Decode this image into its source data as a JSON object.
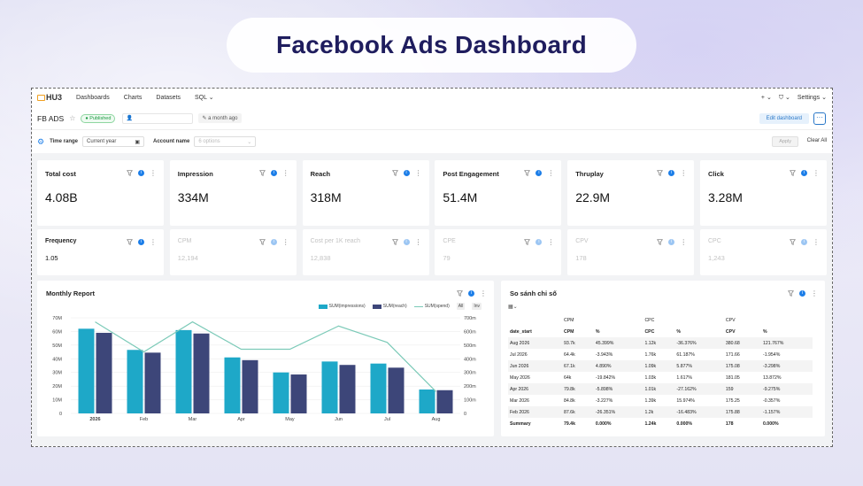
{
  "hero_title": "Facebook Ads Dashboard",
  "nav": {
    "logo": "HU3",
    "items": [
      "Dashboards",
      "Charts",
      "Datasets",
      "SQL"
    ],
    "plus": "+",
    "settings": "Settings"
  },
  "dashboard": {
    "title": "FB ADS",
    "status": "Published",
    "modified": "a month ago",
    "edit_label": "Edit dashboard",
    "more": "···"
  },
  "filters": {
    "time_range_label": "Time range",
    "time_range_value": "Current year",
    "account_label": "Account name",
    "account_placeholder": "6 options",
    "apply": "Apply",
    "clear": "Clear All"
  },
  "metrics_row1": [
    {
      "title": "Total cost",
      "value": "4.08B"
    },
    {
      "title": "Impression",
      "value": "334M"
    },
    {
      "title": "Reach",
      "value": "318M"
    },
    {
      "title": "Post Engagement",
      "value": "51.4M"
    },
    {
      "title": "Thruplay",
      "value": "22.9M"
    },
    {
      "title": "Click",
      "value": "3.28M"
    }
  ],
  "metrics_row2": [
    {
      "title": "Frequency",
      "value": "1.05",
      "dim": false
    },
    {
      "title": "CPM",
      "value": "12,194",
      "dim": true
    },
    {
      "title": "Cost per 1K reach",
      "value": "12,838",
      "dim": true
    },
    {
      "title": "CPE",
      "value": "79",
      "dim": true
    },
    {
      "title": "CPV",
      "value": "178",
      "dim": true
    },
    {
      "title": "CPC",
      "value": "1,243",
      "dim": true
    }
  ],
  "monthly_report": {
    "title": "Monthly Report",
    "legend_all": "All",
    "legend_inv": "Inv"
  },
  "chart_data": {
    "type": "bar",
    "categories": [
      "2026",
      "Feb",
      "Mar",
      "Apr",
      "May",
      "Jun",
      "Jul",
      "Aug"
    ],
    "series": [
      {
        "name": "SUM(impressions)",
        "type": "bar",
        "axis": "left",
        "color": "#1ea8c8",
        "values": [
          62,
          46.5,
          61,
          41,
          30,
          38,
          36.5,
          17.5
        ]
      },
      {
        "name": "SUM(reach)",
        "type": "bar",
        "axis": "left",
        "color": "#3d4679",
        "values": [
          59,
          44.5,
          58.5,
          39,
          28.5,
          35.5,
          33.5,
          17
        ]
      },
      {
        "name": "SUM(spend)",
        "type": "line",
        "axis": "right",
        "color": "#7ccab8",
        "values": [
          670,
          450,
          670,
          470,
          470,
          640,
          520,
          160
        ]
      }
    ],
    "left_ticks": [
      "0",
      "10M",
      "20M",
      "30M",
      "40M",
      "50M",
      "60M",
      "70M"
    ],
    "right_ticks": [
      "0",
      "100m",
      "200m",
      "300m",
      "400m",
      "500m",
      "600m",
      "700m"
    ],
    "ylim_left": [
      0,
      70
    ],
    "ylim_right": [
      0,
      700
    ],
    "grid": true,
    "legend": "top-right"
  },
  "compare": {
    "title": "So sánh chỉ số",
    "groups": [
      "CPM",
      "CPC",
      "CPV"
    ],
    "header": [
      "date_start",
      "CPM",
      "%",
      "CPC",
      "%",
      "CPV",
      "%"
    ],
    "rows": [
      [
        "Aug 2026",
        "93.7k",
        "45.399%",
        "1.12k",
        "-36.376%",
        "380.68",
        "121.767%"
      ],
      [
        "Jul 2026",
        "64.4k",
        "-3.943%",
        "1.76k",
        "61.187%",
        "171.66",
        "-1.954%"
      ],
      [
        "Jun 2026",
        "67.1k",
        "4.890%",
        "1.09k",
        "5.877%",
        "175.08",
        "-3.298%"
      ],
      [
        "May 2026",
        "64k",
        "-19.842%",
        "1.03k",
        "1.617%",
        "181.05",
        "13.872%"
      ],
      [
        "Apr 2026",
        "79.8k",
        "-5.898%",
        "1.01k",
        "-27.162%",
        "159",
        "-9.275%"
      ],
      [
        "Mar 2026",
        "84.8k",
        "-3.227%",
        "1.39k",
        "15.974%",
        "175.25",
        "-0.357%"
      ],
      [
        "Feb 2026",
        "87.6k",
        "-26.351%",
        "1.2k",
        "-16.483%",
        "175.88",
        "-1.157%"
      ]
    ],
    "summary": [
      "Summary",
      "79.4k",
      "0.000%",
      "1.24k",
      "0.000%",
      "178",
      "0.000%"
    ]
  }
}
